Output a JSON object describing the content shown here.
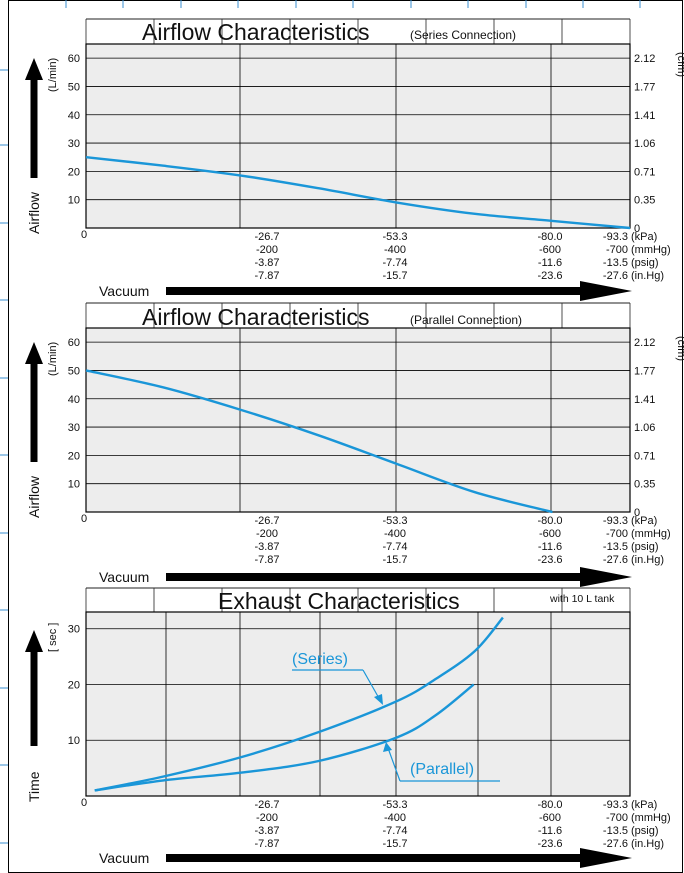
{
  "chart_data": [
    {
      "type": "line",
      "title": "Airflow Characteristics",
      "subtitle": "(Series Connection)",
      "ylabel": "Airflow",
      "yunit": "(L/min)",
      "ylim": [
        0,
        65
      ],
      "yticks": [
        "10",
        "20",
        "30",
        "40",
        "50",
        "60"
      ],
      "y2unit": "(cfm)",
      "y2ticks": [
        "0",
        "0.35",
        "0.71",
        "1.06",
        "1.41",
        "1.77",
        "2.12"
      ],
      "xlabel": "Vacuum",
      "xlim": [
        0,
        -93.3
      ],
      "x_origin": "0",
      "x_ticks_kpa": [
        "-26.7",
        "-53.3",
        "-80.0",
        "-93.3"
      ],
      "x_ticks_mmhg": [
        "-200",
        "-400",
        "-600",
        "-700"
      ],
      "x_ticks_psig": [
        "-3.87",
        "-7.74",
        "-11.6",
        "-13.5"
      ],
      "x_ticks_inhg": [
        "-7.87",
        "-15.7",
        "-23.6",
        "-27.6"
      ],
      "x_units": [
        "(kPa)",
        "(mmHg)",
        "(psig)",
        "(in.Hg)"
      ],
      "series": [
        {
          "x": [
            0,
            -13.3,
            -26.7,
            -40,
            -53.3,
            -66.7,
            -80.0,
            -93.3
          ],
          "values": [
            25,
            22,
            18.5,
            14,
            9,
            5,
            2.5,
            0
          ]
        }
      ]
    },
    {
      "type": "line",
      "title": "Airflow Characteristics",
      "subtitle": "(Parallel Connection)",
      "ylabel": "Airflow",
      "yunit": "(L/min)",
      "ylim": [
        0,
        65
      ],
      "yticks": [
        "10",
        "20",
        "30",
        "40",
        "50",
        "60"
      ],
      "y2unit": "(cfm)",
      "y2ticks": [
        "0",
        "0.35",
        "0.71",
        "1.06",
        "1.41",
        "1.77",
        "2.12"
      ],
      "xlabel": "Vacuum",
      "xlim": [
        0,
        -93.3
      ],
      "x_origin": "0",
      "x_ticks_kpa": [
        "-26.7",
        "-53.3",
        "-80.0",
        "-93.3"
      ],
      "x_ticks_mmhg": [
        "-200",
        "-400",
        "-600",
        "-700"
      ],
      "x_ticks_psig": [
        "-3.87",
        "-7.74",
        "-11.6",
        "-13.5"
      ],
      "x_ticks_inhg": [
        "-7.87",
        "-15.7",
        "-23.6",
        "-27.6"
      ],
      "x_units": [
        "(kPa)",
        "(mmHg)",
        "(psig)",
        "(in.Hg)"
      ],
      "series": [
        {
          "x": [
            0,
            -13.3,
            -26.7,
            -40,
            -53.3,
            -66.7,
            -80.0
          ],
          "values": [
            50,
            44,
            36,
            27,
            17,
            7,
            0
          ]
        }
      ]
    },
    {
      "type": "line",
      "title": "Exhaust Characteristics",
      "note": "with 10 L tank",
      "ylabel": "Time",
      "yunit": "[ sec ]",
      "ylim": [
        0,
        33
      ],
      "yticks": [
        "10",
        "20",
        "30"
      ],
      "xlabel": "Vacuum",
      "xlim": [
        0,
        -93.3
      ],
      "x_origin": "0",
      "x_ticks_kpa": [
        "-26.7",
        "-53.3",
        "-80.0",
        "-93.3"
      ],
      "x_ticks_mmhg": [
        "-200",
        "-400",
        "-600",
        "-700"
      ],
      "x_ticks_psig": [
        "-3.87",
        "-7.74",
        "-11.6",
        "-13.5"
      ],
      "x_ticks_inhg": [
        "-7.87",
        "-15.7",
        "-23.6",
        "-27.6"
      ],
      "x_units": [
        "(kPa)",
        "(mmHg)",
        "(psig)",
        "(in.Hg)"
      ],
      "series": [
        {
          "name": "(Series)",
          "x": [
            -1.5,
            -13.3,
            -26.7,
            -40,
            -53.3,
            -60,
            -66.7,
            -71.5
          ],
          "values": [
            1,
            3.5,
            7,
            11.5,
            17,
            21,
            26,
            32
          ]
        },
        {
          "name": "(Parallel)",
          "x": [
            -1.5,
            -13.3,
            -26.7,
            -40,
            -53.3,
            -60,
            -66.5
          ],
          "values": [
            1,
            2.8,
            4.2,
            6.3,
            10.5,
            14.5,
            20
          ]
        }
      ]
    }
  ]
}
